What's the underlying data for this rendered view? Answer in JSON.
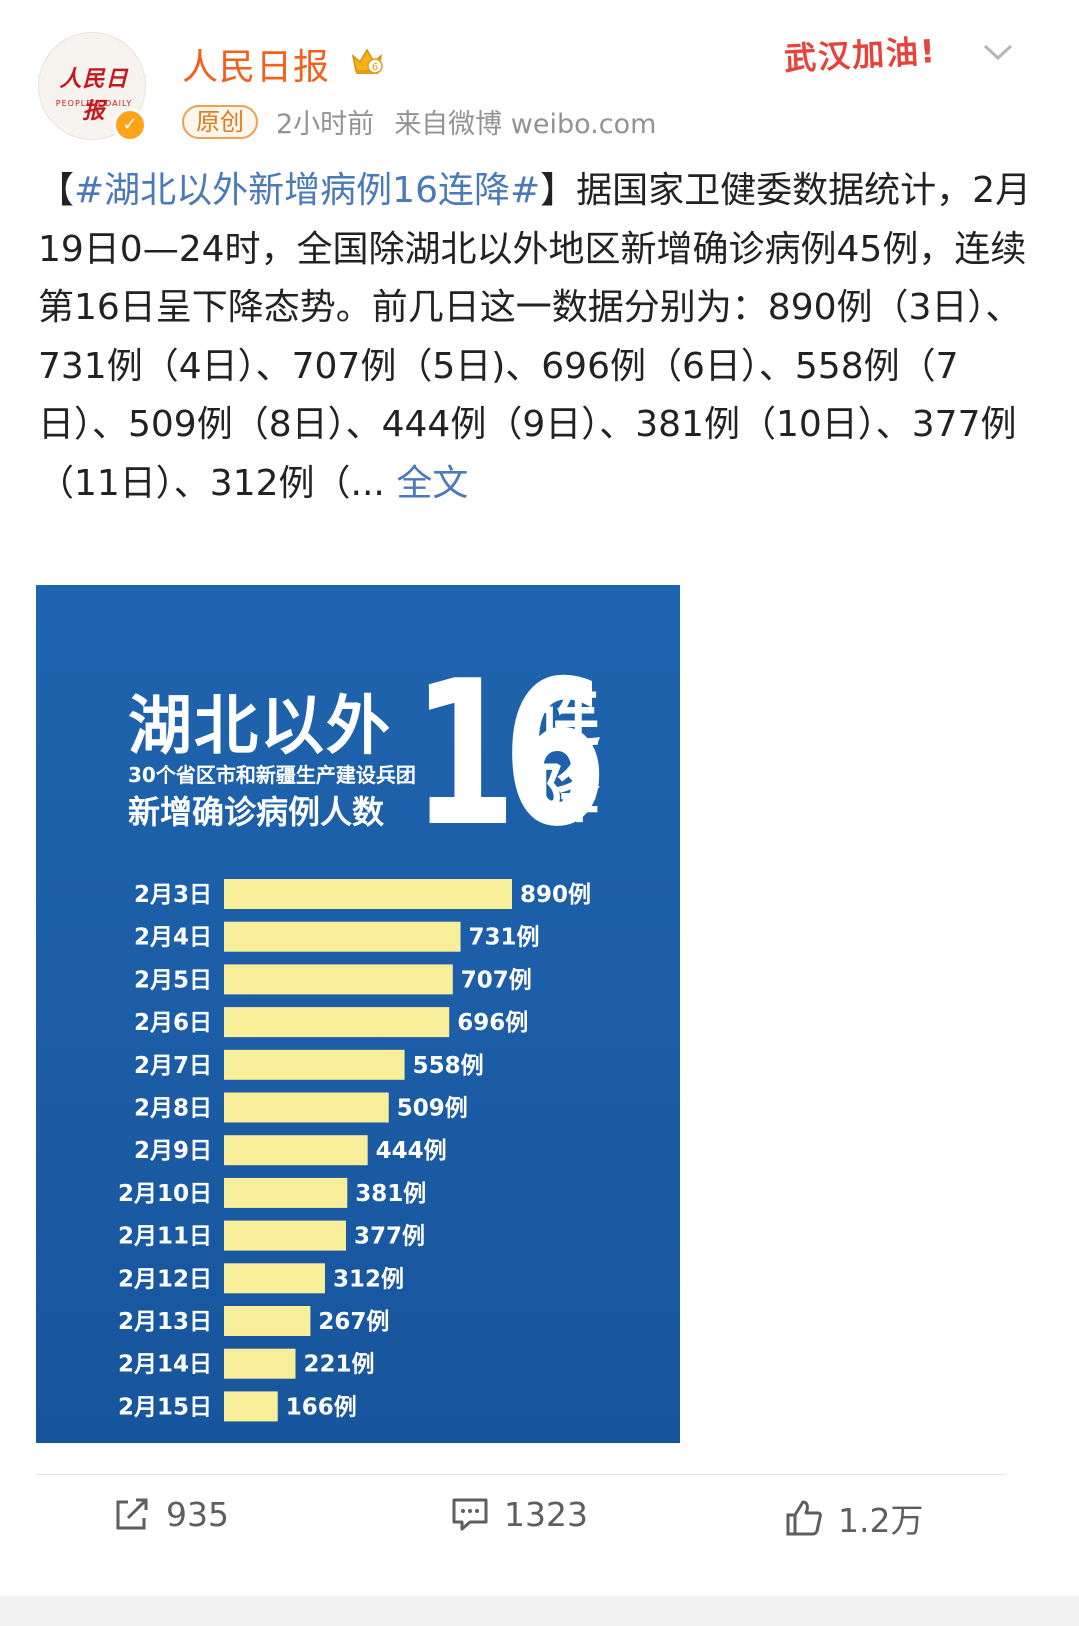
{
  "account": {
    "name": "人民日报",
    "avatar_logo": "人民日报",
    "avatar_logo_en": "PEOPLE'S DAILY",
    "original_badge": "原创",
    "time": "2小时前",
    "source": "来自微博 weibo.com",
    "cheer_badge": "武汉加油!"
  },
  "post": {
    "bracket_open": "【",
    "hashtag": "#湖北以外新增病例16连降#",
    "bracket_close": "】",
    "body": "据国家卫健委数据统计，2月19日0—24时，全国除湖北以外地区新增确诊病例45例，连续第16日呈下降态势。前几日这一数据分别为：890例（3日）、731例（4日）、707例（5日)、696例（6日）、558例（7日）、509例（8日）、444例（9日）、381例（10日）、377例（11日）、312例（",
    "ellipsis": "...",
    "more_link": "全文"
  },
  "poster": {
    "title": "湖北以外",
    "subtitle_small": "30个省区市和新疆生产建设兵团",
    "subtitle_large": "新增确诊病例人数",
    "big_number": "16",
    "big_label": "连降"
  },
  "chart_data": {
    "type": "bar",
    "orientation": "horizontal",
    "categories": [
      "2月3日",
      "2月4日",
      "2月5日",
      "2月6日",
      "2月7日",
      "2月8日",
      "2月9日",
      "2月10日",
      "2月11日",
      "2月12日",
      "2月13日",
      "2月14日",
      "2月15日"
    ],
    "values": [
      890,
      731,
      707,
      696,
      558,
      509,
      444,
      381,
      377,
      312,
      267,
      221,
      166
    ],
    "value_suffix": "例",
    "bar_color": "#f9ef9a",
    "background_color": "#1c5ea8"
  },
  "actions": {
    "repost_count": "935",
    "comment_count": "1323",
    "like_count": "1.2万"
  },
  "colors": {
    "username": "#f2611c",
    "link": "#4a7ab7",
    "meta": "#939393"
  }
}
